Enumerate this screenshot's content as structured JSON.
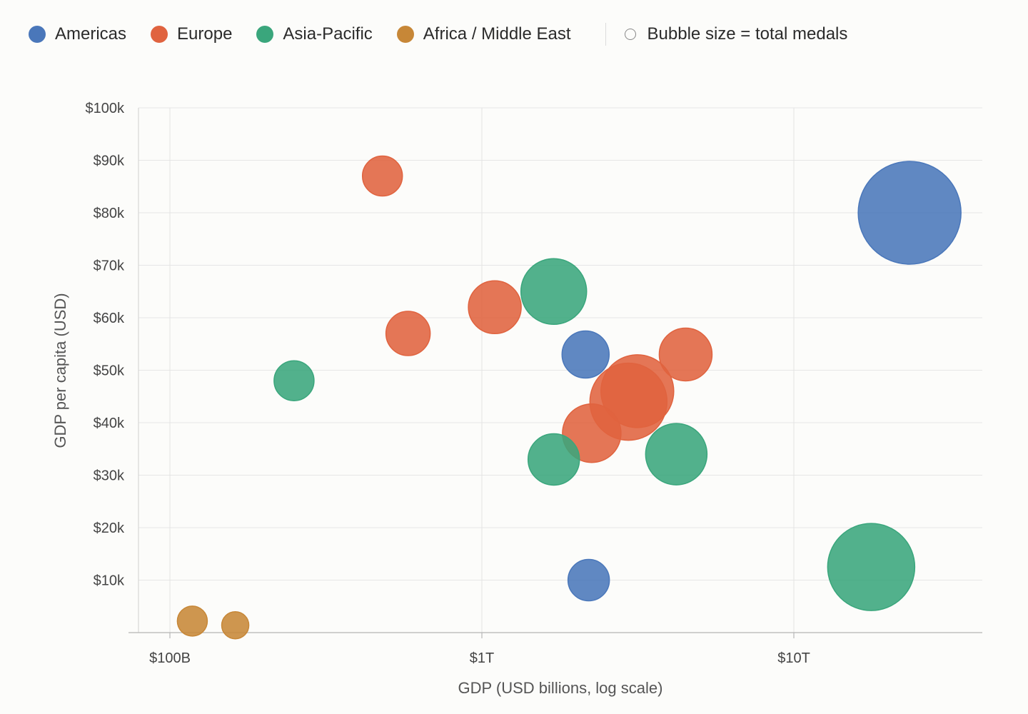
{
  "legend": {
    "regions": [
      {
        "label": "Americas",
        "color": "#4a77ba"
      },
      {
        "label": "Europe",
        "color": "#e0633f"
      },
      {
        "label": "Asia-Pacific",
        "color": "#3aa67c"
      },
      {
        "label": "Africa / Middle East",
        "color": "#c78737"
      }
    ],
    "size_note": "Bubble size = total medals"
  },
  "chart_data": {
    "type": "scatter",
    "subtype": "bubble",
    "xlabel": "GDP (USD billions, log scale)",
    "ylabel": "GDP per capita (USD)",
    "x_scale": "log",
    "xlim": [
      90,
      26000
    ],
    "ylim": [
      0,
      100000
    ],
    "x_ticks": [
      {
        "value": 100,
        "label": "$100B"
      },
      {
        "value": 1000,
        "label": "$1T"
      },
      {
        "value": 10000,
        "label": "$10T"
      }
    ],
    "y_ticks": [
      {
        "value": 10000,
        "label": "$10k"
      },
      {
        "value": 20000,
        "label": "$20k"
      },
      {
        "value": 30000,
        "label": "$30k"
      },
      {
        "value": 40000,
        "label": "$40k"
      },
      {
        "value": 50000,
        "label": "$50k"
      },
      {
        "value": 60000,
        "label": "$60k"
      },
      {
        "value": 70000,
        "label": "$70k"
      },
      {
        "value": 80000,
        "label": "$80k"
      },
      {
        "value": 90000,
        "label": "$90k"
      },
      {
        "value": 100000,
        "label": "$100k"
      }
    ],
    "grid": true,
    "legend_position": "top",
    "series": [
      {
        "name": "Americas",
        "color": "#4a77ba",
        "points": [
          {
            "x": 23500,
            "y": 80000,
            "r": 72
          },
          {
            "x": 2150,
            "y": 53000,
            "r": 33
          },
          {
            "x": 2200,
            "y": 10000,
            "r": 29
          }
        ]
      },
      {
        "name": "Europe",
        "color": "#e0633f",
        "points": [
          {
            "x": 480,
            "y": 87000,
            "r": 28
          },
          {
            "x": 1100,
            "y": 62000,
            "r": 37
          },
          {
            "x": 580,
            "y": 57000,
            "r": 31
          },
          {
            "x": 4500,
            "y": 53000,
            "r": 37
          },
          {
            "x": 3150,
            "y": 46000,
            "r": 51
          },
          {
            "x": 2950,
            "y": 44000,
            "r": 54
          },
          {
            "x": 2250,
            "y": 38000,
            "r": 41
          }
        ]
      },
      {
        "name": "Asia-Pacific",
        "color": "#3aa67c",
        "points": [
          {
            "x": 1700,
            "y": 65000,
            "r": 46
          },
          {
            "x": 250,
            "y": 48000,
            "r": 28
          },
          {
            "x": 1700,
            "y": 33000,
            "r": 36
          },
          {
            "x": 4200,
            "y": 34000,
            "r": 43
          },
          {
            "x": 17700,
            "y": 12500,
            "r": 61
          }
        ]
      },
      {
        "name": "Africa / Middle East",
        "color": "#c78737",
        "points": [
          {
            "x": 118,
            "y": 2200,
            "r": 21
          },
          {
            "x": 162,
            "y": 1400,
            "r": 19
          }
        ]
      }
    ]
  }
}
